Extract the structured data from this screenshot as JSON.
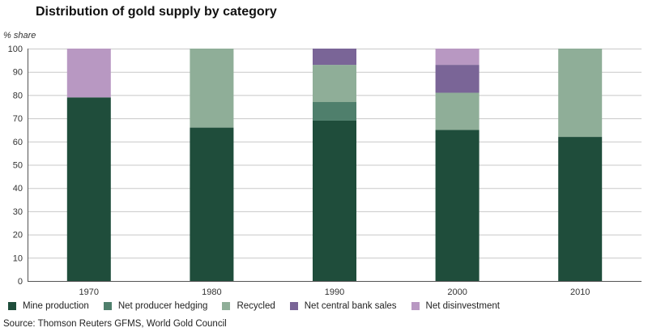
{
  "chart_data": {
    "type": "bar",
    "stacked": true,
    "title": "Distribution of gold supply by category",
    "ylabel": "% share",
    "xlabel": "",
    "ylim": [
      0,
      100
    ],
    "yticks": [
      0,
      10,
      20,
      30,
      40,
      50,
      60,
      70,
      80,
      90,
      100
    ],
    "grid": true,
    "legend_position": "bottom",
    "categories": [
      "1970",
      "1980",
      "1990",
      "2000",
      "2010"
    ],
    "series": [
      {
        "name": "Mine production",
        "color": "#1f4d3b",
        "values": [
          79,
          66,
          69,
          65,
          62
        ]
      },
      {
        "name": "Net producer hedging",
        "color": "#4f7f6c",
        "values": [
          0,
          0,
          8,
          0,
          0
        ]
      },
      {
        "name": "Recycled",
        "color": "#8fae98",
        "values": [
          0,
          34,
          16,
          16,
          38
        ]
      },
      {
        "name": "Net central bank sales",
        "color": "#7a6597",
        "values": [
          0,
          0,
          7,
          12,
          0
        ]
      },
      {
        "name": "Net disinvestment",
        "color": "#b898c2",
        "values": [
          21,
          0,
          0,
          7,
          0
        ]
      }
    ],
    "source": "Source: Thomson Reuters GFMS, World Gold Council"
  }
}
